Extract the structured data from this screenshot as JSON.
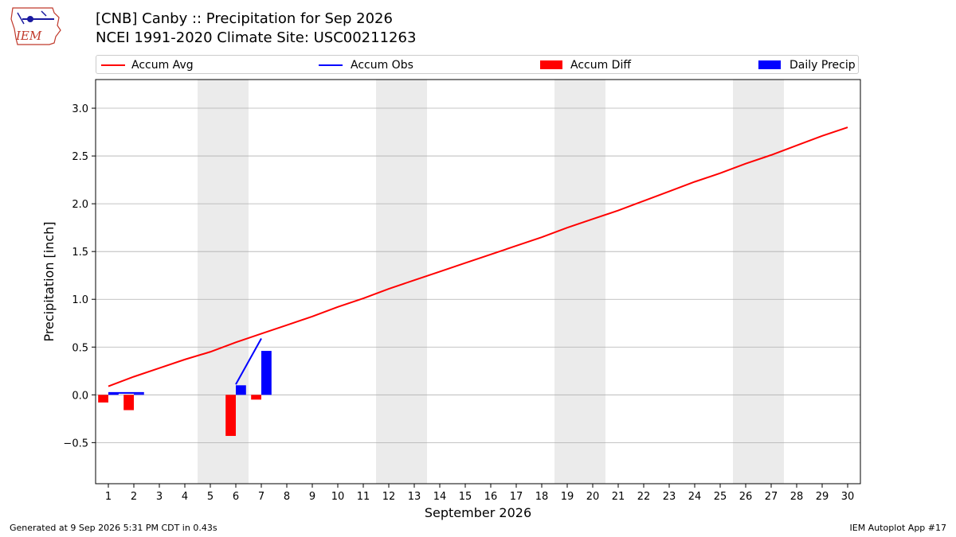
{
  "title_line1": "[CNB] Canby :: Precipitation for Sep 2026",
  "title_line2": "NCEI 1991-2020 Climate Site: USC00211263",
  "logo_text": "IEM",
  "legend": [
    {
      "label": "Accum Avg",
      "color": "#ff0000",
      "kind": "line"
    },
    {
      "label": "Accum Obs",
      "color": "#0000ff",
      "kind": "line"
    },
    {
      "label": "Accum Diff",
      "color": "#ff0000",
      "kind": "box"
    },
    {
      "label": "Daily Precip",
      "color": "#0000ff",
      "kind": "box"
    }
  ],
  "footer_left": "Generated at 9 Sep 2026 5:31 PM CDT in 0.43s",
  "footer_right": "IEM Autoplot App #17",
  "chart_data": {
    "type": "bar",
    "xlabel": "September 2026",
    "ylabel": "Precipitation [inch]",
    "xlim": [
      0.5,
      30.5
    ],
    "ylim": [
      -0.93,
      3.3
    ],
    "yticks": [
      -0.5,
      0.0,
      0.5,
      1.0,
      1.5,
      2.0,
      2.5,
      3.0
    ],
    "ytick_labels": [
      "−0.5",
      "0.0",
      "0.5",
      "1.0",
      "1.5",
      "2.0",
      "2.5",
      "3.0"
    ],
    "xticks": [
      1,
      2,
      3,
      4,
      5,
      6,
      7,
      8,
      9,
      10,
      11,
      12,
      13,
      14,
      15,
      16,
      17,
      18,
      19,
      20,
      21,
      22,
      23,
      24,
      25,
      26,
      27,
      28,
      29,
      30
    ],
    "grid": "y",
    "weekend_shading": [
      [
        4.5,
        6.5
      ],
      [
        11.5,
        13.5
      ],
      [
        18.5,
        20.5
      ],
      [
        25.5,
        27.5
      ]
    ],
    "colors": {
      "avg": "#ff0000",
      "obs": "#0000ff",
      "diff": "#ff0000",
      "daily": "#0000ff",
      "shade": "#ebebeb",
      "grid": "#b0b0b0"
    },
    "series": [
      {
        "name": "Accum Avg",
        "kind": "line",
        "x": [
          1,
          2,
          3,
          4,
          5,
          6,
          7,
          8,
          9,
          10,
          11,
          12,
          13,
          14,
          15,
          16,
          17,
          18,
          19,
          20,
          21,
          22,
          23,
          24,
          25,
          26,
          27,
          28,
          29,
          30
        ],
        "values": [
          0.09,
          0.19,
          0.28,
          0.37,
          0.45,
          0.55,
          0.64,
          0.73,
          0.82,
          0.92,
          1.01,
          1.11,
          1.2,
          1.29,
          1.38,
          1.47,
          1.56,
          1.65,
          1.75,
          1.84,
          1.93,
          2.03,
          2.13,
          2.23,
          2.32,
          2.42,
          2.51,
          2.61,
          2.71,
          2.8
        ]
      },
      {
        "name": "Accum Obs",
        "kind": "line",
        "segments": [
          {
            "x": [
              1,
              2.4
            ],
            "values": [
              0.02,
              0.02
            ]
          },
          {
            "x": [
              6,
              7
            ],
            "values": [
              0.11,
              0.59
            ]
          }
        ]
      },
      {
        "name": "Accum Diff",
        "kind": "bar",
        "x": [
          1,
          2,
          6,
          7
        ],
        "values": [
          -0.08,
          -0.16,
          -0.43,
          -0.05
        ]
      },
      {
        "name": "Daily Precip",
        "kind": "bar",
        "x": [
          1,
          2,
          6,
          7
        ],
        "values": [
          0.02,
          0.01,
          0.1,
          0.46
        ]
      }
    ]
  }
}
